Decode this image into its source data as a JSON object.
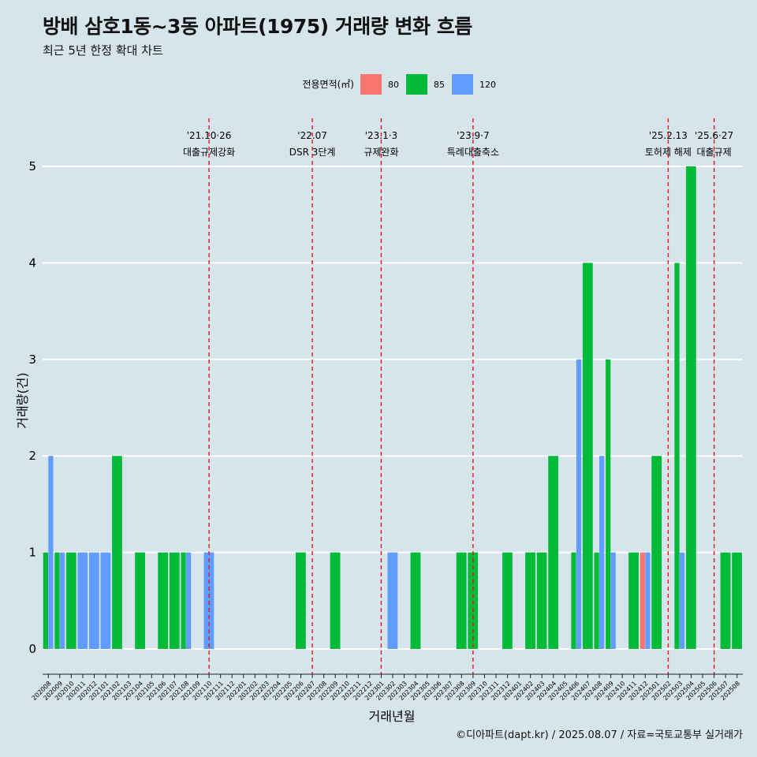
{
  "header": {
    "title": "방배 삼호1동~3동 아파트(1975) 거래량 변화 흐름",
    "subtitle": "최근 5년 한정 확대 차트"
  },
  "legend": {
    "title": "전용면적(㎡)",
    "items": [
      {
        "label": "80",
        "color": "#f8766d"
      },
      {
        "label": "85",
        "color": "#00ba38"
      },
      {
        "label": "120",
        "color": "#619cff"
      }
    ]
  },
  "caption": "©디아파트(dapt.kr) / 2025.08.07 / 자료=국토교통부 실거래가",
  "chart_data": {
    "type": "bar",
    "stacked": false,
    "xlabel": "거래년월",
    "ylabel": "거래량(건)",
    "ylim": [
      0,
      5
    ],
    "yticks": [
      0,
      1,
      2,
      3,
      4,
      5
    ],
    "grid": "horizontal",
    "legend_position": "top",
    "categories": [
      "202008",
      "202009",
      "202010",
      "202011",
      "202012",
      "202101",
      "202102",
      "202103",
      "202104",
      "202105",
      "202106",
      "202107",
      "202108",
      "202109",
      "202110",
      "202111",
      "202112",
      "202201",
      "202202",
      "202203",
      "202204",
      "202205",
      "202206",
      "202207",
      "202208",
      "202209",
      "202210",
      "202211",
      "202212",
      "202301",
      "202302",
      "202303",
      "202304",
      "202305",
      "202306",
      "202307",
      "202308",
      "202309",
      "202310",
      "202311",
      "202312",
      "202401",
      "202402",
      "202403",
      "202404",
      "202405",
      "202406",
      "202407",
      "202408",
      "202409",
      "202410",
      "202411",
      "202412",
      "202501",
      "202502",
      "202503",
      "202504",
      "202505",
      "202506",
      "202507",
      "202508"
    ],
    "series": [
      {
        "name": "80",
        "color": "#f8766d",
        "values": [
          0,
          0,
          0,
          0,
          0,
          0,
          0,
          0,
          0,
          0,
          0,
          0,
          0,
          0,
          0,
          0,
          0,
          0,
          0,
          0,
          0,
          0,
          0,
          0,
          0,
          0,
          0,
          0,
          0,
          0,
          0,
          0,
          0,
          0,
          0,
          0,
          0,
          0,
          0,
          0,
          0,
          0,
          0,
          0,
          0,
          0,
          0,
          0,
          0,
          0,
          0,
          0,
          1,
          0,
          0,
          0,
          0,
          0,
          0,
          0,
          0
        ]
      },
      {
        "name": "85",
        "color": "#00ba38",
        "values": [
          1,
          1,
          1,
          0,
          0,
          0,
          2,
          0,
          1,
          0,
          1,
          1,
          1,
          0,
          0,
          0,
          0,
          0,
          0,
          0,
          0,
          0,
          1,
          0,
          0,
          1,
          0,
          0,
          0,
          0,
          0,
          0,
          1,
          0,
          0,
          0,
          1,
          1,
          0,
          0,
          1,
          0,
          1,
          1,
          2,
          0,
          1,
          4,
          1,
          3,
          0,
          1,
          0,
          2,
          0,
          4,
          5,
          0,
          0,
          1,
          1
        ]
      },
      {
        "name": "120",
        "color": "#619cff",
        "values": [
          2,
          1,
          0,
          1,
          1,
          1,
          0,
          0,
          0,
          0,
          0,
          0,
          1,
          0,
          1,
          0,
          0,
          0,
          0,
          0,
          0,
          0,
          0,
          0,
          0,
          0,
          0,
          0,
          0,
          0,
          1,
          0,
          0,
          0,
          0,
          0,
          0,
          0,
          0,
          0,
          0,
          0,
          0,
          0,
          0,
          0,
          3,
          0,
          2,
          1,
          0,
          0,
          1,
          0,
          0,
          1,
          0,
          0,
          0,
          0,
          0
        ]
      }
    ],
    "annotations": [
      {
        "date": "'21.10·26",
        "label": "대출규제강화",
        "x": "202110"
      },
      {
        "date": "'22.07",
        "label": "DSR 3단계",
        "x": "202207"
      },
      {
        "date": "'23.1·3",
        "label": "규제완화",
        "x": "202301"
      },
      {
        "date": "'23.9·7",
        "label": "특례대출축소",
        "x": "202309"
      },
      {
        "date": "'25.2.13",
        "label": "토허제 해제",
        "x": "202502"
      },
      {
        "date": "'25.6·27",
        "label": "대출규제",
        "x": "202506"
      }
    ]
  }
}
